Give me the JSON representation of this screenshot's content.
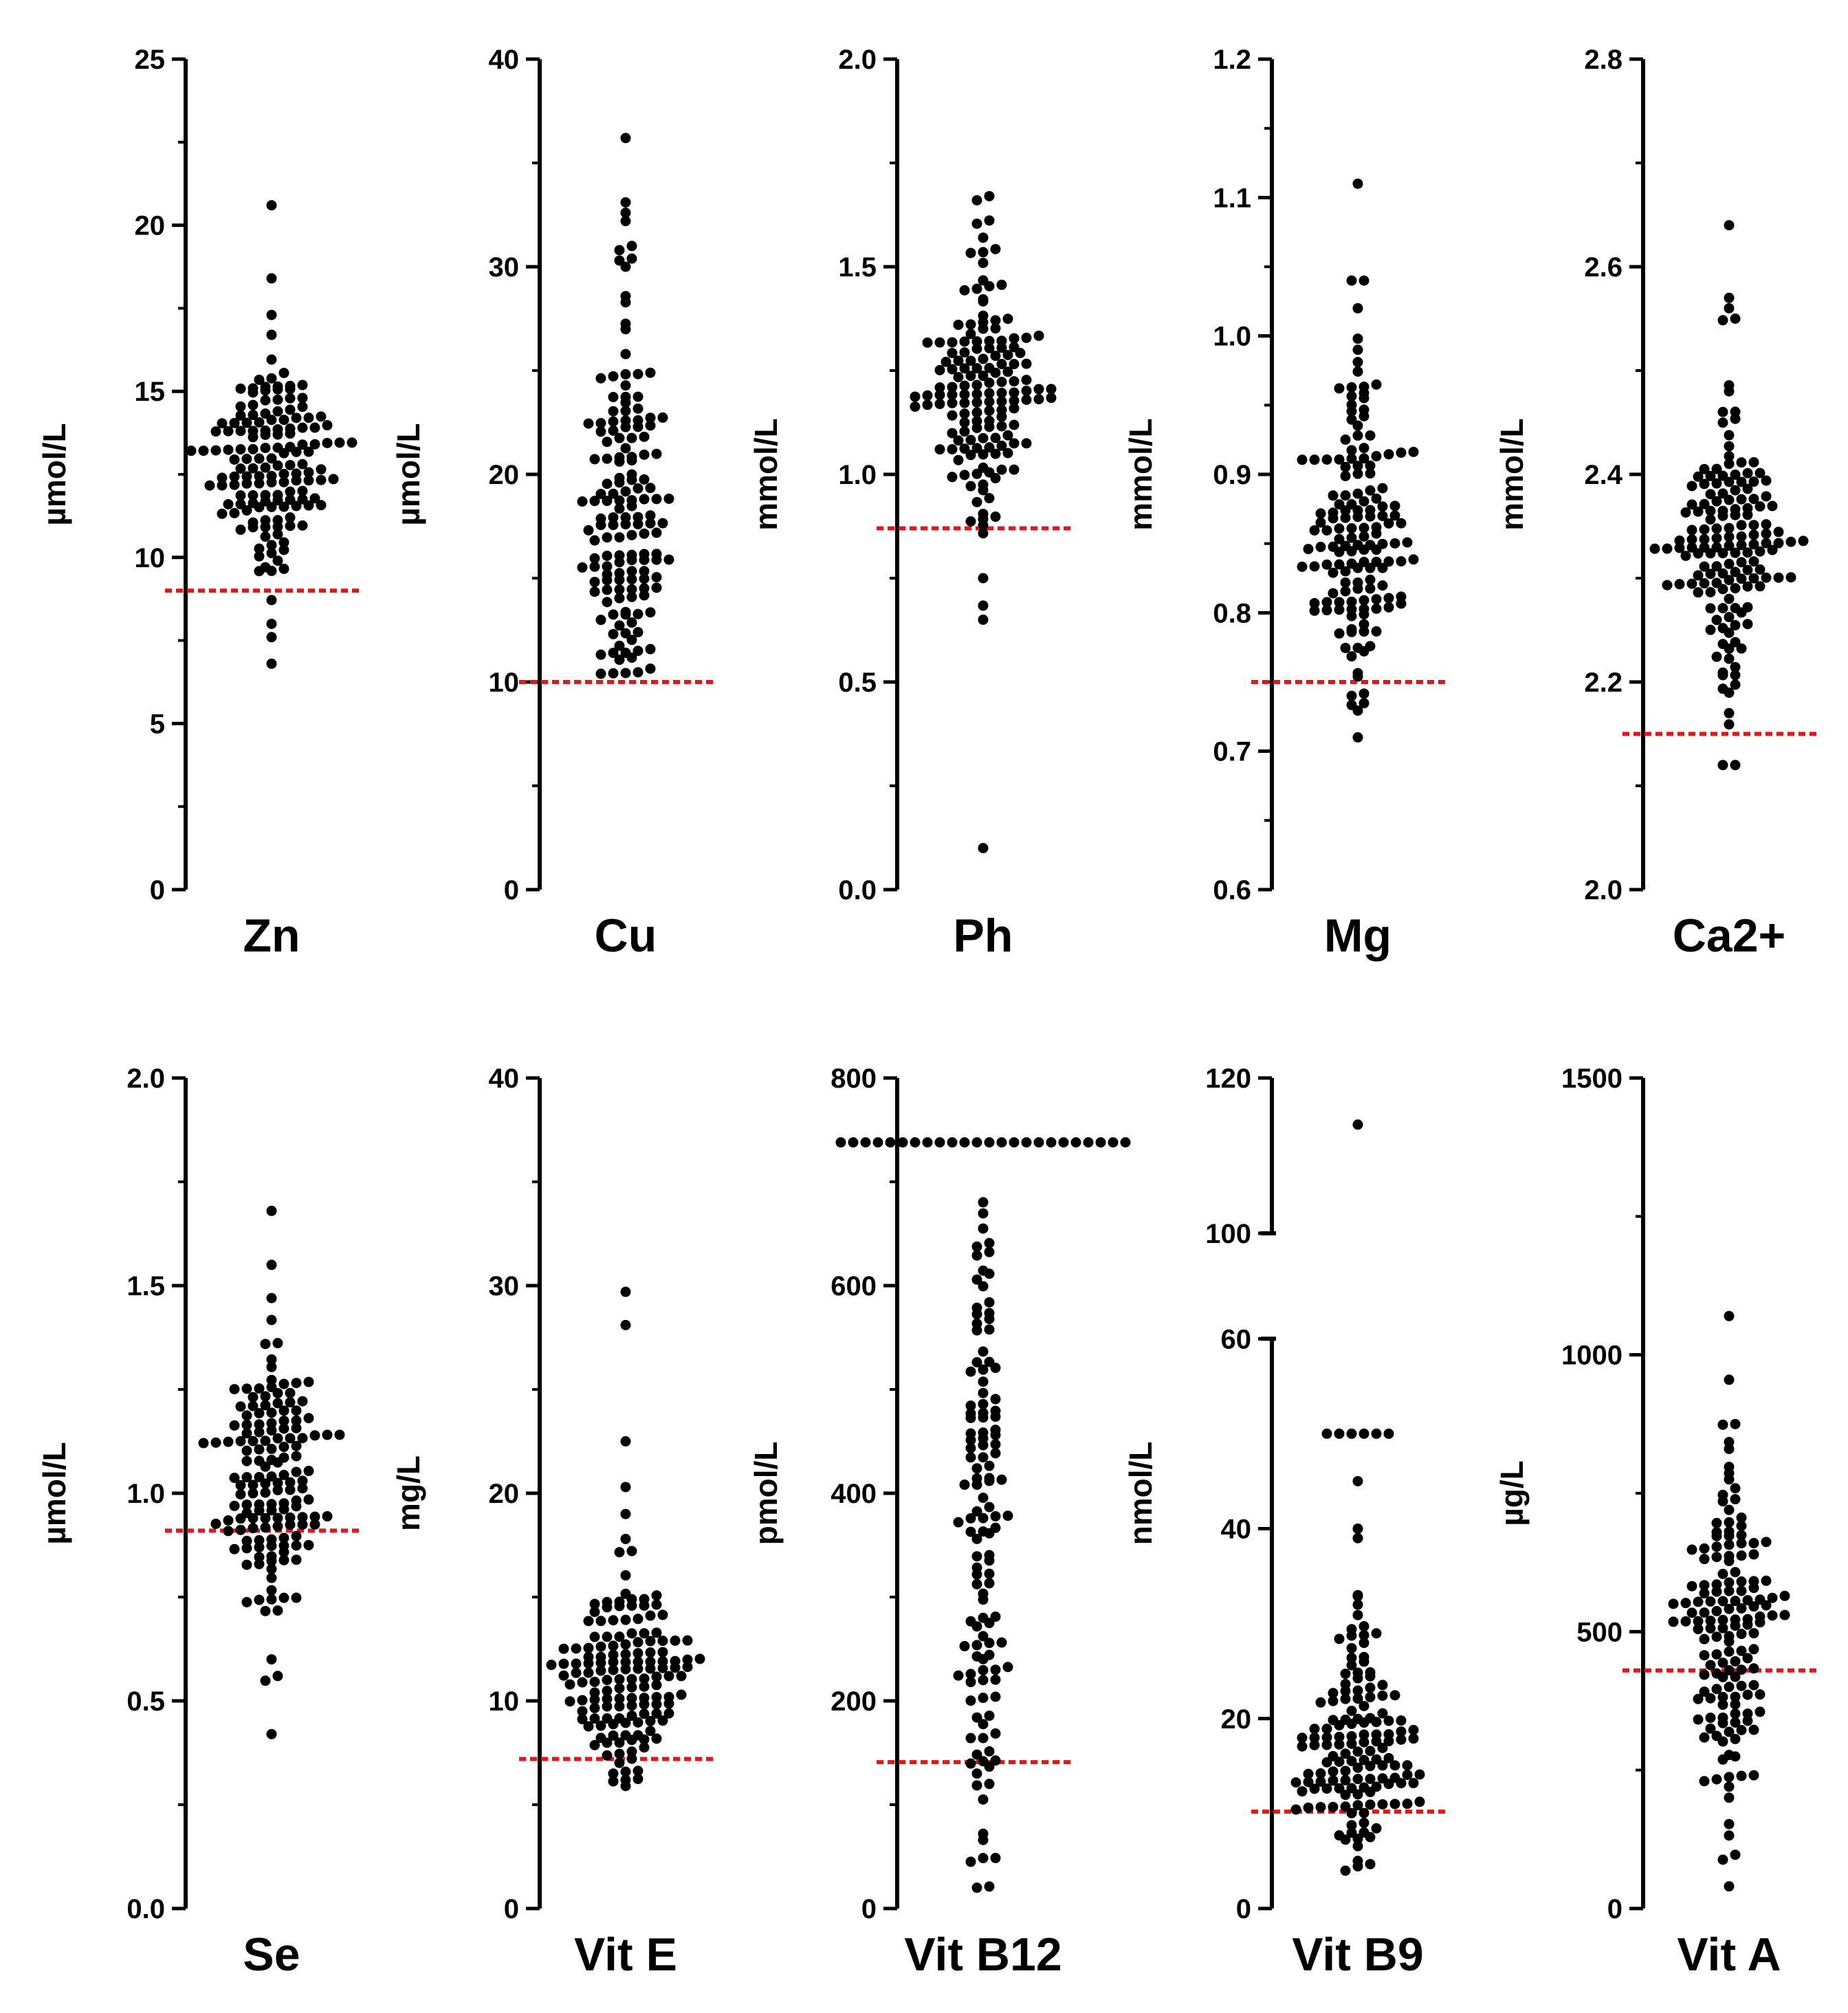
{
  "colors": {
    "dot": "#000000",
    "axis": "#000000",
    "reference_line": "#e8141a",
    "background": "#ffffff"
  },
  "chart_data": [
    {
      "type": "scatter",
      "title": "Zn",
      "ylabel": "µmol/L",
      "ylim": [
        0,
        25
      ],
      "ticks": [
        "0",
        "5",
        "10",
        "15",
        "20",
        "25"
      ],
      "tick_values": [
        0,
        5,
        10,
        15,
        20,
        25
      ],
      "reference_line": 9,
      "distribution": {
        "n": 150,
        "median": 12.8,
        "q1": 11.8,
        "q3": 13.9,
        "min": 6.8,
        "max": 20.6,
        "outliers": [
          20.6,
          18.4,
          17.3,
          16.7,
          7.6,
          8.0,
          6.8
        ]
      }
    },
    {
      "type": "scatter",
      "title": "Cu",
      "ylabel": "µmol/L",
      "ylim": [
        0,
        40
      ],
      "ticks": [
        "0",
        "10",
        "20",
        "30",
        "40"
      ],
      "tick_values": [
        0,
        10,
        20,
        30,
        40
      ],
      "reference_line": 10,
      "distribution": {
        "n": 150,
        "median": 16.5,
        "q1": 14.0,
        "q3": 21.5,
        "min": 10.3,
        "max": 36.2,
        "outliers": [
          36.2,
          33.1,
          32.6,
          32.2,
          31.0,
          30.8,
          30.3,
          30.0
        ]
      }
    },
    {
      "type": "scatter",
      "title": "Ph",
      "ylabel": "mmol/L",
      "ylim": [
        0.0,
        2.0
      ],
      "ticks": [
        "0.0",
        "0.5",
        "1.0",
        "1.5",
        "2.0"
      ],
      "tick_values": [
        0,
        0.5,
        1.0,
        1.5,
        2.0
      ],
      "reference_line": 0.87,
      "distribution": {
        "n": 150,
        "median": 1.2,
        "q1": 1.1,
        "q3": 1.3,
        "min": 0.1,
        "max": 1.67,
        "outliers": [
          1.67,
          1.66,
          1.57,
          0.75,
          0.65,
          0.1
        ]
      }
    },
    {
      "type": "scatter",
      "title": "Mg",
      "ylabel": "mmol/L",
      "ylim": [
        0.6,
        1.2
      ],
      "ticks": [
        "0.6",
        "0.7",
        "0.8",
        "0.9",
        "1.0",
        "1.1",
        "1.2"
      ],
      "tick_values": [
        0.6,
        0.7,
        0.8,
        0.9,
        1.0,
        1.1,
        1.2
      ],
      "reference_line": 0.75,
      "distribution": {
        "n": 150,
        "median": 0.86,
        "q1": 0.82,
        "q3": 0.9,
        "min": 0.71,
        "max": 1.11,
        "outliers": [
          1.11,
          1.04,
          1.04,
          1.02,
          0.71,
          0.74
        ]
      }
    },
    {
      "type": "scatter",
      "title": "Ca2+",
      "ylabel": "mmol/L",
      "ylim": [
        2.0,
        2.8
      ],
      "ticks": [
        "2.0",
        "2.2",
        "2.4",
        "2.6",
        "2.8"
      ],
      "tick_values": [
        2.0,
        2.2,
        2.4,
        2.6,
        2.8
      ],
      "reference_line": 2.15,
      "distribution": {
        "n": 150,
        "median": 2.33,
        "q1": 2.29,
        "q3": 2.38,
        "min": 2.12,
        "max": 2.64,
        "outliers": [
          2.64,
          2.57,
          2.56,
          2.55,
          2.12,
          2.12,
          2.17
        ]
      }
    },
    {
      "type": "scatter",
      "title": "Se",
      "ylabel": "µmol/L",
      "ylim": [
        0.0,
        2.0
      ],
      "ticks": [
        "0.0",
        "0.5",
        "1.0",
        "1.5",
        "2.0"
      ],
      "tick_values": [
        0,
        0.5,
        1.0,
        1.5,
        2.0
      ],
      "reference_line": 0.91,
      "distribution": {
        "n": 150,
        "median": 1.0,
        "q1": 0.87,
        "q3": 1.1,
        "min": 0.42,
        "max": 1.68,
        "outliers": [
          1.68,
          1.55,
          1.47,
          0.42,
          0.56,
          0.6
        ]
      }
    },
    {
      "type": "scatter",
      "title": "Vit E",
      "ylabel": "mg/L",
      "ylim": [
        0,
        40
      ],
      "ticks": [
        "0",
        "10",
        "20",
        "30",
        "40"
      ],
      "tick_values": [
        0,
        10,
        20,
        30,
        40
      ],
      "reference_line": 7.2,
      "distribution": {
        "n": 150,
        "median": 11.5,
        "q1": 9.9,
        "q3": 13.1,
        "min": 5.9,
        "max": 29.7,
        "outliers": [
          29.7,
          28.1,
          22.5,
          20.3,
          19.0,
          17.8,
          6.5,
          5.9
        ]
      }
    },
    {
      "type": "scatter",
      "title": "Vit B12",
      "ylabel": "pmol/L",
      "ylim": [
        0,
        800
      ],
      "ticks": [
        "0",
        "200",
        "400",
        "600",
        "800"
      ],
      "tick_values": [
        0,
        200,
        400,
        600,
        800
      ],
      "reference_line": 141,
      "distribution": {
        "n": 150,
        "median": 360,
        "q1": 270,
        "q3": 520,
        "min": 20,
        "max": 700,
        "cap_value": 738,
        "cap_count": 24,
        "outliers": [
          20,
          120,
          130
        ]
      }
    },
    {
      "type": "scatter",
      "title": "Vit B9",
      "ylabel": "nmol/L",
      "ylim": [
        0,
        120
      ],
      "axis_break": [
        60,
        100
      ],
      "ticks": [
        "0",
        "20",
        "40",
        "60",
        "100",
        "120"
      ],
      "tick_values": [
        0,
        20,
        40,
        60,
        100,
        120
      ],
      "reference_line": 10.2,
      "distribution": {
        "n": 150,
        "median": 15.5,
        "q1": 11.0,
        "q3": 22.0,
        "min": 3.5,
        "max": 114,
        "cap_value": 50,
        "cap_count": 6,
        "outliers": [
          114,
          45,
          40,
          39,
          33,
          32
        ]
      }
    },
    {
      "type": "scatter",
      "title": "Vit A",
      "ylabel": "µg/L",
      "ylim": [
        0,
        1500
      ],
      "ticks": [
        "0",
        "500",
        "1000",
        "1500"
      ],
      "tick_values": [
        0,
        500,
        1000,
        1500
      ],
      "reference_line": 430,
      "distribution": {
        "n": 150,
        "median": 520,
        "q1": 430,
        "q3": 630,
        "min": 40,
        "max": 1070,
        "outliers": [
          1070,
          955,
          875,
          830,
          40,
          220,
          230
        ]
      }
    }
  ]
}
